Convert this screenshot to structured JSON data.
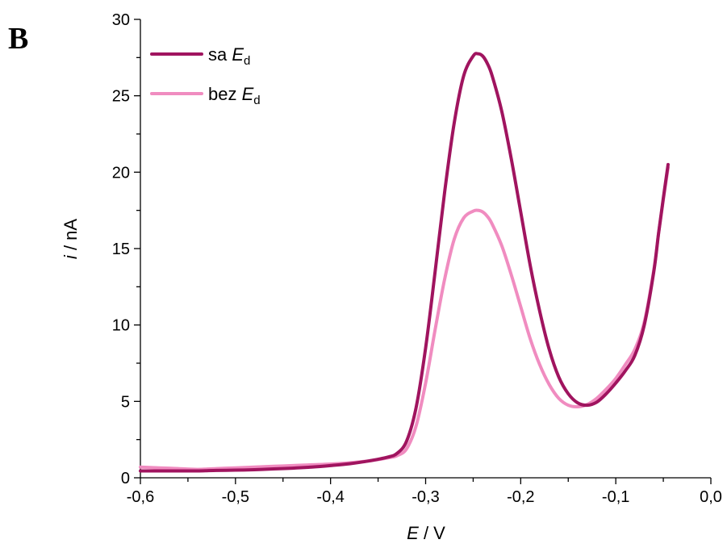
{
  "panel_label": "B",
  "colors": {
    "sa": "#A0145F",
    "bez": "#F08CC0",
    "axis": "#000000"
  },
  "chart_data": {
    "type": "line",
    "xlabel": {
      "italic": "E",
      "rest": " / V"
    },
    "ylabel": {
      "italic": "i",
      "rest": " / nA"
    },
    "xlim": [
      -0.6,
      0.0
    ],
    "ylim": [
      0,
      30
    ],
    "x_ticks": [
      -0.6,
      -0.5,
      -0.4,
      -0.3,
      -0.2,
      -0.1,
      0.0
    ],
    "x_tick_labels": [
      "-0,6",
      "-0,5",
      "-0,4",
      "-0,3",
      "-0,2",
      "-0,1",
      "0,0"
    ],
    "y_ticks": [
      0,
      5,
      10,
      15,
      20,
      25,
      30
    ],
    "y_tick_labels": [
      "0",
      "5",
      "10",
      "15",
      "20",
      "25",
      "30"
    ],
    "legend_position": "top-left",
    "series": [
      {
        "name": "sa E_d",
        "legend": {
          "prefix": "sa ",
          "italic": "E",
          "sub": "d"
        },
        "color": "#A0145F",
        "x": [
          -0.6,
          -0.58,
          -0.56,
          -0.54,
          -0.52,
          -0.5,
          -0.48,
          -0.46,
          -0.44,
          -0.42,
          -0.4,
          -0.38,
          -0.36,
          -0.34,
          -0.33,
          -0.32,
          -0.31,
          -0.3,
          -0.29,
          -0.28,
          -0.27,
          -0.26,
          -0.25,
          -0.245,
          -0.24,
          -0.235,
          -0.23,
          -0.22,
          -0.21,
          -0.2,
          -0.19,
          -0.18,
          -0.17,
          -0.16,
          -0.15,
          -0.14,
          -0.13,
          -0.12,
          -0.11,
          -0.1,
          -0.09,
          -0.08,
          -0.07,
          -0.06,
          -0.055,
          -0.05,
          -0.045
        ],
        "y": [
          0.45,
          0.45,
          0.45,
          0.45,
          0.48,
          0.5,
          0.53,
          0.58,
          0.63,
          0.7,
          0.8,
          0.92,
          1.1,
          1.35,
          1.6,
          2.4,
          4.6,
          8.5,
          13.5,
          18.7,
          23.2,
          26.3,
          27.6,
          27.75,
          27.6,
          27.1,
          26.3,
          24.0,
          20.9,
          17.4,
          13.9,
          10.9,
          8.4,
          6.6,
          5.5,
          4.9,
          4.75,
          4.95,
          5.5,
          6.2,
          7.0,
          8.0,
          10.0,
          13.5,
          16.0,
          18.3,
          20.5
        ]
      },
      {
        "name": "bez E_d",
        "legend": {
          "prefix": "bez ",
          "italic": "E",
          "sub": "d"
        },
        "color": "#F08CC0",
        "x": [
          -0.6,
          -0.58,
          -0.56,
          -0.54,
          -0.52,
          -0.5,
          -0.48,
          -0.46,
          -0.44,
          -0.42,
          -0.4,
          -0.38,
          -0.36,
          -0.34,
          -0.33,
          -0.32,
          -0.31,
          -0.3,
          -0.29,
          -0.28,
          -0.27,
          -0.26,
          -0.25,
          -0.245,
          -0.24,
          -0.235,
          -0.23,
          -0.22,
          -0.21,
          -0.2,
          -0.19,
          -0.18,
          -0.17,
          -0.16,
          -0.15,
          -0.14,
          -0.13,
          -0.12,
          -0.11,
          -0.1,
          -0.09,
          -0.08,
          -0.07,
          -0.06,
          -0.055,
          -0.05,
          -0.045
        ],
        "y": [
          0.7,
          0.65,
          0.6,
          0.55,
          0.6,
          0.65,
          0.7,
          0.75,
          0.8,
          0.85,
          0.9,
          0.98,
          1.1,
          1.3,
          1.45,
          1.9,
          3.4,
          6.2,
          9.7,
          13.0,
          15.6,
          17.0,
          17.45,
          17.5,
          17.4,
          17.1,
          16.6,
          15.2,
          13.3,
          11.2,
          9.1,
          7.4,
          6.1,
          5.2,
          4.75,
          4.65,
          4.8,
          5.2,
          5.8,
          6.5,
          7.4,
          8.4,
          10.2,
          13.6,
          16.0,
          18.2,
          20.3
        ]
      }
    ]
  }
}
